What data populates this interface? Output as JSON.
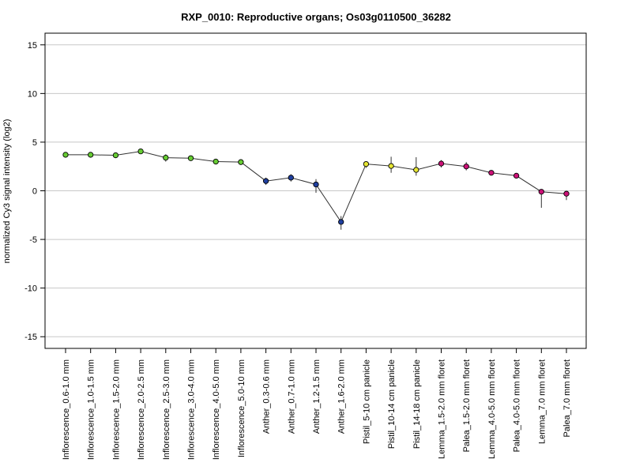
{
  "chart_data": {
    "type": "line",
    "title": "RXP_0010: Reproductive organs; Os03g0110500_36282",
    "xlabel": "",
    "ylabel": "normalized Cy3 signal intensity (log2)",
    "ylim": [
      -16.2,
      16.2
    ],
    "yticks": [
      15,
      10,
      5,
      0,
      -5,
      -10,
      -15
    ],
    "grid": true,
    "categories": [
      "Inflorescence_0.6-1.0 mm",
      "Inflorescence_1.0-1.5 mm",
      "Inflorescence_1.5-2.0 mm",
      "Inflorescence_2.0-2.5 mm",
      "Inflorescence_2.5-3.0 mm",
      "Inflorescence_3.0-4.0 mm",
      "Inflorescence_4.0-5.0 mm",
      "Inflorescence_5.0-10 mm",
      "Anther_0.3-0.6 mm",
      "Anther_0.7-1.0 mm",
      "Anther_1.2-1.5 mm",
      "Anther_1.6-2.0 mm",
      "Pistil_5-10 cm panicle",
      "Pistil_10-14 cm panicle",
      "Pistil_14-18 cm panicle",
      "Lemma_1.5-2.0 mm floret",
      "Palea_1.5-2.0 mm floret",
      "Lemma_4.0-5.0 mm floret",
      "Palea_4.0-5.0 mm floret",
      "Lemma_7.0 mm floret",
      "Palea_7.0 mm floret"
    ],
    "values": [
      3.7,
      3.7,
      3.65,
      4.05,
      3.4,
      3.35,
      3.0,
      2.95,
      1.0,
      1.35,
      0.65,
      -3.2,
      2.75,
      2.55,
      2.15,
      2.8,
      2.5,
      1.85,
      1.55,
      -0.1,
      -0.3
    ],
    "error_low": [
      3.55,
      3.55,
      3.5,
      3.9,
      3.0,
      3.2,
      2.85,
      2.8,
      0.6,
      0.95,
      -0.2,
      -4.0,
      2.35,
      1.85,
      1.55,
      2.4,
      2.1,
      1.7,
      1.4,
      -1.75,
      -0.95
    ],
    "error_high": [
      3.85,
      3.85,
      3.8,
      4.2,
      3.75,
      3.5,
      3.15,
      3.1,
      1.35,
      1.7,
      1.2,
      -2.6,
      3.0,
      3.5,
      3.45,
      3.15,
      2.95,
      2.0,
      1.7,
      0.05,
      -0.1
    ],
    "point_colors": [
      "#66cc33",
      "#66cc33",
      "#66cc33",
      "#66cc33",
      "#66cc33",
      "#66cc33",
      "#66cc33",
      "#66cc33",
      "#1f3f9f",
      "#1f3f9f",
      "#1f3f9f",
      "#1f3f9f",
      "#e6e633",
      "#e6e633",
      "#e6e633",
      "#cc1177",
      "#cc1177",
      "#cc1177",
      "#cc1177",
      "#cc1177",
      "#cc1177"
    ]
  }
}
